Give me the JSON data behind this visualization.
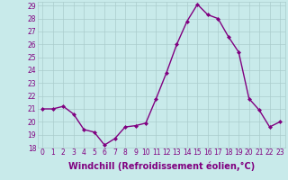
{
  "x": [
    0,
    1,
    2,
    3,
    4,
    5,
    6,
    7,
    8,
    9,
    10,
    11,
    12,
    13,
    14,
    15,
    16,
    17,
    18,
    19,
    20,
    21,
    22,
    23
  ],
  "y": [
    21.0,
    21.0,
    21.2,
    20.6,
    19.4,
    19.2,
    18.2,
    18.7,
    19.6,
    19.7,
    19.9,
    21.8,
    23.8,
    26.0,
    27.8,
    29.1,
    28.3,
    28.0,
    26.6,
    25.4,
    21.8,
    20.9,
    19.6,
    20.0
  ],
  "line_color": "#800080",
  "marker": "D",
  "marker_size": 2,
  "bg_color": "#c8eaea",
  "grid_color": "#aacccc",
  "xlabel": "Windchill (Refroidissement éolien,°C)",
  "ylim": [
    18,
    29
  ],
  "xlim_min": -0.5,
  "xlim_max": 23.5,
  "yticks": [
    18,
    19,
    20,
    21,
    22,
    23,
    24,
    25,
    26,
    27,
    28,
    29
  ],
  "xticks": [
    0,
    1,
    2,
    3,
    4,
    5,
    6,
    7,
    8,
    9,
    10,
    11,
    12,
    13,
    14,
    15,
    16,
    17,
    18,
    19,
    20,
    21,
    22,
    23
  ],
  "tick_label_color": "#800080",
  "tick_label_size": 5.5,
  "xlabel_size": 7.0,
  "label_color": "#800080",
  "linewidth": 1.0
}
